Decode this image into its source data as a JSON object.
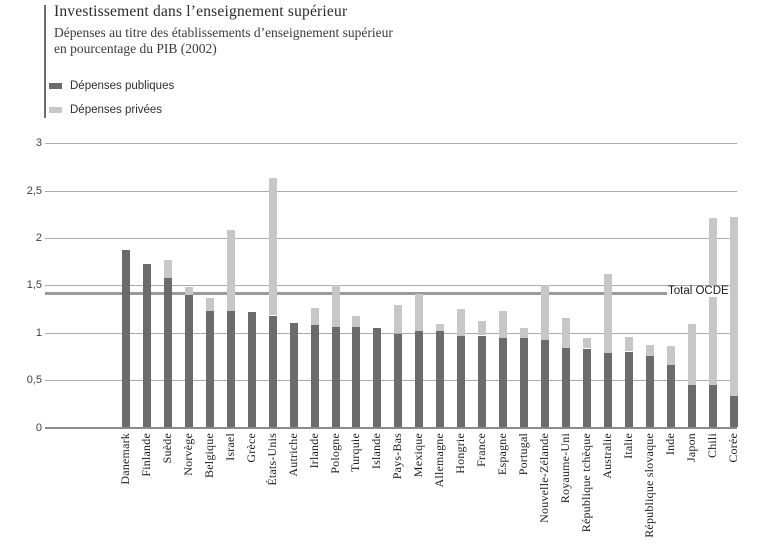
{
  "header": {
    "title": "Investissement dans l’enseignement supérieur",
    "subtitle_line1": "Dépenses au titre des établissements d’enseignement supérieur",
    "subtitle_line2": "en pourcentage du PIB (2002)"
  },
  "chart_data": {
    "type": "bar",
    "stacked": true,
    "title": "Investissement dans l’enseignement supérieur",
    "subtitle": "Dépenses au titre des établissements d’enseignement supérieur en pourcentage du PIB (2002)",
    "legend": [
      "Dépenses publiques",
      "Dépenses privées"
    ],
    "legend_position": "top-left",
    "grid": true,
    "ylim": [
      0,
      3
    ],
    "ytick_labels": [
      "3",
      "2,5",
      "2",
      "1,5",
      "1",
      "0,5",
      "0"
    ],
    "ytick_values": [
      3,
      2.5,
      2,
      1.5,
      1,
      0.5,
      0
    ],
    "xlabel": "",
    "ylabel": "",
    "categories": [
      "Danemark",
      "Finlande",
      "Suède",
      "Norvège",
      "Belgique",
      "Israel",
      "Grèce",
      "États-Unis",
      "Autriche",
      "Irlande",
      "Pologne",
      "Turquie",
      "Islande",
      "Pays-Bas",
      "Mexique",
      "Allemagne",
      "Hongrie",
      "France",
      "Espagne",
      "Portugal",
      "Nouvelle-Zélande",
      "Royaume-Uni",
      "République tchèque",
      "Australie",
      "Italie",
      "République slovaque",
      "Inde",
      "Japon",
      "Chili",
      "Corée"
    ],
    "series": [
      {
        "name": "Dépenses publiques",
        "color": "#6b6b6b",
        "values": [
          1.87,
          1.72,
          1.58,
          1.4,
          1.23,
          1.23,
          1.22,
          1.18,
          1.1,
          1.08,
          1.06,
          1.06,
          1.05,
          0.99,
          1.02,
          1.02,
          0.96,
          0.97,
          0.95,
          0.94,
          0.92,
          0.84,
          0.83,
          0.79,
          0.8,
          0.75,
          0.66,
          0.45,
          0.45,
          0.33
        ]
      },
      {
        "name": "Dépenses privées",
        "color": "#c7c7c7",
        "values": [
          0,
          0,
          0.19,
          0.08,
          0.14,
          0.85,
          0,
          1.45,
          0,
          0.18,
          0.44,
          0.12,
          0,
          0.3,
          0.39,
          0.07,
          0.29,
          0.15,
          0.28,
          0.11,
          0.58,
          0.32,
          0.11,
          0.83,
          0.15,
          0.12,
          0.2,
          0.64,
          1.76,
          1.89
        ]
      }
    ],
    "annotation": {
      "label": "Total OCDE",
      "value": 1.42
    },
    "colors": {
      "public": "#6b6b6b",
      "private": "#c7c7c7",
      "gridline": "#ababab",
      "axis": "#8a8a8a"
    }
  }
}
